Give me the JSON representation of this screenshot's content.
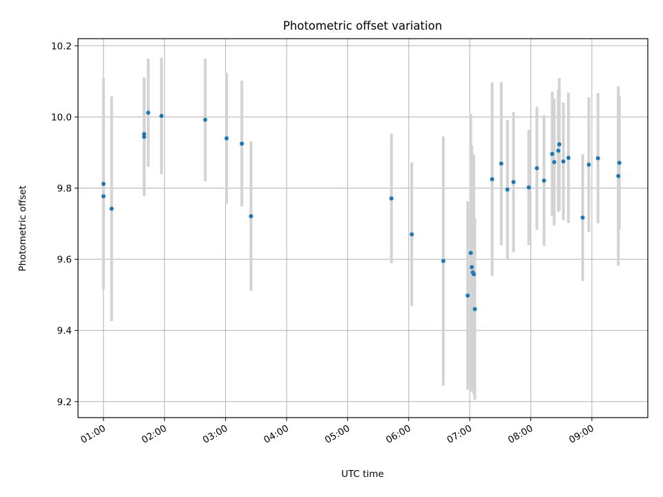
{
  "chart_data": {
    "type": "scatter",
    "title": "Photometric offset variation",
    "xlabel": "UTC time",
    "ylabel": "Photometric offset",
    "x_ticks": [
      "01:00",
      "02:00",
      "03:00",
      "04:00",
      "05:00",
      "06:00",
      "07:00",
      "08:00",
      "09:00"
    ],
    "y_ticks": [
      "9.2",
      "9.4",
      "9.6",
      "9.8",
      "10.0",
      "10.2"
    ],
    "xlim": [
      "00:35",
      "09:55"
    ],
    "ylim": [
      9.155,
      10.22
    ],
    "grid": true,
    "colors": {
      "marker": "#1f77b4",
      "errorbar": "#d3d3d3",
      "grid": "#b0b0b0"
    },
    "points": [
      {
        "x": "01:00",
        "y": 9.777,
        "yerr": 0.25
      },
      {
        "x": "01:00",
        "y": 9.812,
        "yerr": 0.297
      },
      {
        "x": "01:08",
        "y": 9.742,
        "yerr": 0.316
      },
      {
        "x": "01:40",
        "y": 9.944,
        "yerr": 0.167
      },
      {
        "x": "01:40",
        "y": 9.952,
        "yerr": 0.158
      },
      {
        "x": "01:44",
        "y": 10.012,
        "yerr": 0.152
      },
      {
        "x": "01:57",
        "y": 10.003,
        "yerr": 0.164
      },
      {
        "x": "02:40",
        "y": 9.992,
        "yerr": 0.172
      },
      {
        "x": "03:01",
        "y": 9.94,
        "yerr": 0.184
      },
      {
        "x": "03:16",
        "y": 9.925,
        "yerr": 0.177
      },
      {
        "x": "03:25",
        "y": 9.721,
        "yerr": 0.21
      },
      {
        "x": "05:43",
        "y": 9.771,
        "yerr": 0.182
      },
      {
        "x": "06:03",
        "y": 9.67,
        "yerr": 0.202
      },
      {
        "x": "06:34",
        "y": 9.595,
        "yerr": 0.35
      },
      {
        "x": "06:58",
        "y": 9.498,
        "yerr": 0.265
      },
      {
        "x": "07:01",
        "y": 9.618,
        "yerr": 0.39
      },
      {
        "x": "07:02",
        "y": 9.578,
        "yerr": 0.342
      },
      {
        "x": "07:03",
        "y": 9.563,
        "yerr": 0.306
      },
      {
        "x": "07:04",
        "y": 9.558,
        "yerr": 0.337
      },
      {
        "x": "07:05",
        "y": 9.46,
        "yerr": 0.255
      },
      {
        "x": "07:22",
        "y": 9.825,
        "yerr": 0.272
      },
      {
        "x": "07:31",
        "y": 9.869,
        "yerr": 0.229
      },
      {
        "x": "07:37",
        "y": 9.796,
        "yerr": 0.195
      },
      {
        "x": "07:43",
        "y": 9.817,
        "yerr": 0.197
      },
      {
        "x": "07:58",
        "y": 9.802,
        "yerr": 0.162
      },
      {
        "x": "08:06",
        "y": 9.856,
        "yerr": 0.173
      },
      {
        "x": "08:13",
        "y": 9.821,
        "yerr": 0.184
      },
      {
        "x": "08:21",
        "y": 9.896,
        "yerr": 0.175
      },
      {
        "x": "08:23",
        "y": 9.873,
        "yerr": 0.178
      },
      {
        "x": "08:27",
        "y": 9.905,
        "yerr": 0.172
      },
      {
        "x": "08:28",
        "y": 9.923,
        "yerr": 0.186
      },
      {
        "x": "08:32",
        "y": 9.875,
        "yerr": 0.165
      },
      {
        "x": "08:37",
        "y": 9.885,
        "yerr": 0.183
      },
      {
        "x": "08:51",
        "y": 9.717,
        "yerr": 0.178
      },
      {
        "x": "08:57",
        "y": 9.866,
        "yerr": 0.189
      },
      {
        "x": "09:06",
        "y": 9.884,
        "yerr": 0.183
      },
      {
        "x": "09:26",
        "y": 9.834,
        "yerr": 0.252
      },
      {
        "x": "09:27",
        "y": 9.871,
        "yerr": 0.188
      }
    ]
  }
}
